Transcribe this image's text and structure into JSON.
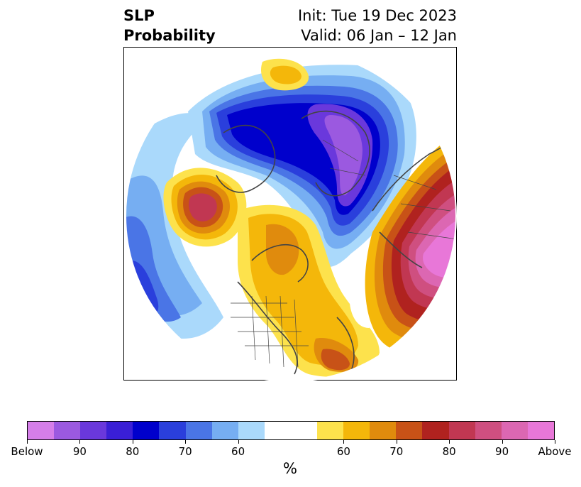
{
  "title": {
    "left_line1": "SLP",
    "left_line2": "Probability",
    "right_line1": "Init: Tue 19 Dec 2023",
    "right_line2": "Valid: 06 Jan – 12 Jan"
  },
  "colorbar": {
    "units": "%",
    "colors": [
      "#d57ee9",
      "#9b59e0",
      "#6a38dc",
      "#3a1fd6",
      "#0000cc",
      "#2a3fdc",
      "#4a75e6",
      "#76aef2",
      "#aad9fb",
      "#ffffff",
      "#ffffff",
      "#fde24c",
      "#f4b70a",
      "#e08b0d",
      "#c85217",
      "#b0221f",
      "#c13752",
      "#cf4f80",
      "#dc67b2",
      "#e877d8"
    ],
    "tick_labels": [
      "Below",
      "90",
      "80",
      "70",
      "60",
      "60",
      "70",
      "80",
      "90",
      "Above"
    ]
  }
}
